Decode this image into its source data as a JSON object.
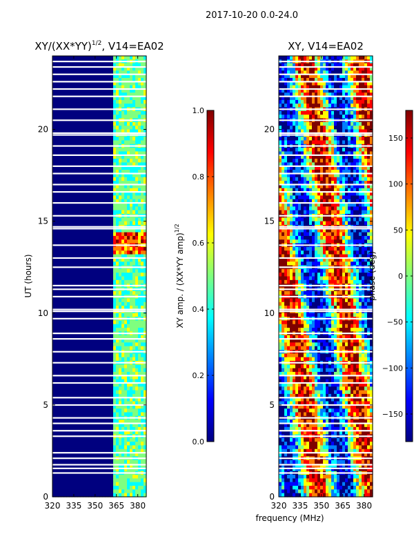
{
  "figure": {
    "suptitle": "2017-10-20 0.0-24.0"
  },
  "colors": {
    "jet": [
      "#00007f",
      "#0000ff",
      "#007fff",
      "#00ffff",
      "#7fff7f",
      "#ffff00",
      "#ff7f00",
      "#ff0000",
      "#7f0000"
    ],
    "frame": "#000000",
    "gap": "#ffffff",
    "background": "#ffffff"
  },
  "chart_data": [
    {
      "type": "heatmap",
      "title_main": "XY/(XX*YY)",
      "title_sup": "1/2",
      "title_tail": ", V14=EA02",
      "xlabel": "",
      "ylabel": "UT (hours)",
      "xlim": [
        320,
        386
      ],
      "ylim": [
        0,
        24
      ],
      "xticks": [
        320,
        335,
        350,
        365,
        380
      ],
      "yticks": [
        0,
        5,
        10,
        15,
        20
      ],
      "colorbar": {
        "label": "XY amp. / (XX*YY amp)",
        "label_sup": "1/2",
        "range": [
          0.0,
          1.0
        ],
        "ticks": [
          "0.0",
          "0.2",
          "0.4",
          "0.6",
          "0.8",
          "1.0"
        ],
        "tick_values": [
          0.0,
          0.2,
          0.4,
          0.6,
          0.8,
          1.0
        ]
      },
      "description_bands": [
        {
          "x_from": 320,
          "x_to": 362,
          "level": 0.0
        },
        {
          "x_from": 362,
          "x_to": 386,
          "level": 0.45
        }
      ],
      "high_amp_hours": [
        13.2,
        14.5
      ]
    },
    {
      "type": "heatmap",
      "title": "XY, V14=EA02",
      "xlabel": "frequency (MHz)",
      "ylabel": "",
      "xlim": [
        320,
        386
      ],
      "ylim": [
        0,
        24
      ],
      "xticks": [
        320,
        335,
        350,
        365,
        380
      ],
      "yticks": [
        0,
        5,
        10,
        15,
        20
      ],
      "colorbar": {
        "label": "phase (deg)",
        "range": [
          -180,
          180
        ],
        "ticks": [
          "150",
          "100",
          "50",
          "0",
          "−50",
          "−100",
          "−150"
        ],
        "tick_values": [
          150,
          100,
          50,
          0,
          -50,
          -100,
          -150
        ]
      }
    }
  ],
  "gaps_hours": [
    1.3,
    1.55,
    1.75,
    2.1,
    2.4,
    3.3,
    3.6,
    4.0,
    4.3,
    5.0,
    5.4,
    6.2,
    6.6,
    7.3,
    7.9,
    8.6,
    8.9,
    9.7,
    10.1,
    10.2,
    10.9,
    11.3,
    11.5,
    12.5,
    13.0,
    13.7,
    14.6,
    14.7,
    15.3,
    16.0,
    16.6,
    17.0,
    17.6,
    18.0,
    18.6,
    19.1,
    19.7,
    19.8,
    20.5,
    21.1,
    21.8,
    22.2,
    22.6,
    23.0,
    23.4,
    23.7
  ]
}
